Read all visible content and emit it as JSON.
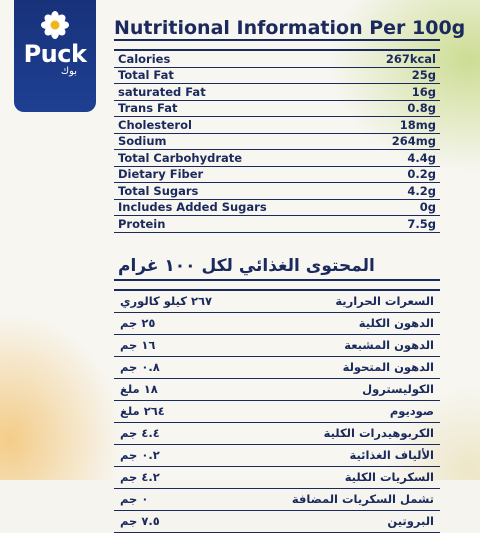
{
  "brand": {
    "name": "Puck",
    "subtitle": "بوك",
    "colors": {
      "navy": "#1b2a5c",
      "banner": "#1e3f92",
      "background": "#f7f6f1"
    }
  },
  "english": {
    "title": "Nutritional Information Per 100g",
    "rows": [
      {
        "label": "Calories",
        "value": "267kcal"
      },
      {
        "label": "Total Fat",
        "value": "25g"
      },
      {
        "label": "saturated Fat",
        "value": "16g"
      },
      {
        "label": "Trans Fat",
        "value": "0.8g"
      },
      {
        "label": "Cholesterol",
        "value": "18mg"
      },
      {
        "label": "Sodium",
        "value": "264mg"
      },
      {
        "label": "Total Carbohydrate",
        "value": "4.4g"
      },
      {
        "label": "Dietary Fiber",
        "value": "0.2g"
      },
      {
        "label": "Total Sugars",
        "value": "4.2g"
      },
      {
        "label": "Includes Added Sugars",
        "value": "0g"
      },
      {
        "label": "Protein",
        "value": "7.5g"
      }
    ]
  },
  "arabic": {
    "title": "المحتوى الغذائي لكل ١٠٠ غرام",
    "rows": [
      {
        "label": "السعرات الحرارية",
        "value": "٢٦٧ كيلو كالوري"
      },
      {
        "label": "الدهون الكلية",
        "value": "٢٥ جم"
      },
      {
        "label": "الدهون المشبعة",
        "value": "١٦ جم"
      },
      {
        "label": "الدهون المتحولة",
        "value": "٠.٨ جم"
      },
      {
        "label": "الكوليسترول",
        "value": "١٨ ملغ"
      },
      {
        "label": "صوديوم",
        "value": "٢٦٤ ملغ"
      },
      {
        "label": "الكربوهيدرات الكلية",
        "value": "٤.٤ جم"
      },
      {
        "label": "الألياف الغذائية",
        "value": "٠.٢ جم"
      },
      {
        "label": "السكريات الكلية",
        "value": "٤.٢ جم"
      },
      {
        "label": "تشمل السكريات المضافة",
        "value": "٠ جم"
      },
      {
        "label": "البروتين",
        "value": "٧.٥ جم"
      }
    ]
  }
}
